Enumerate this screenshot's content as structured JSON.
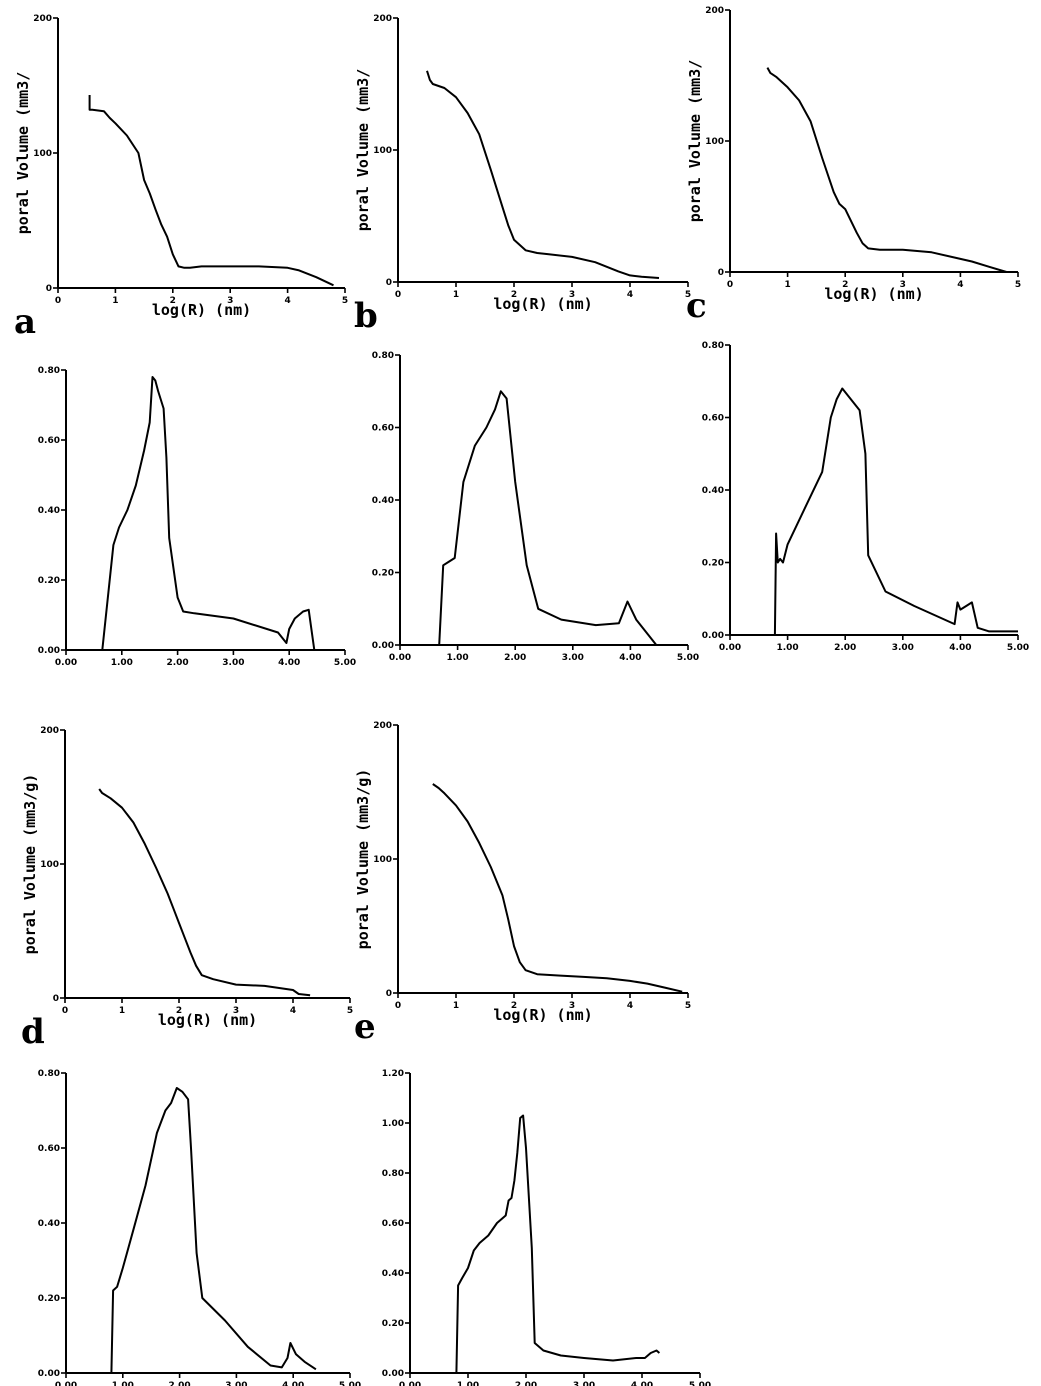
{
  "chart_data": [
    {
      "id": "a",
      "type": "line",
      "panel_label": "a",
      "xlabel": "log(R) (nm)",
      "ylabel": "poral Volume (mm3/",
      "xlim": [
        0,
        5
      ],
      "ylim": [
        0,
        200
      ],
      "x_ticks": [
        "0",
        "1",
        "2",
        "3",
        "4",
        "5"
      ],
      "y_ticks": [
        "0",
        "100",
        "200"
      ],
      "series": [
        {
          "x": [
            0.55,
            0.55,
            0.6,
            0.8,
            0.9,
            1.0,
            1.2,
            1.4,
            1.5,
            1.6,
            1.7,
            1.8,
            1.9,
            2.0,
            2.1,
            2.2,
            2.3,
            2.5,
            3.0,
            3.5,
            4.0,
            4.2,
            4.5,
            4.8
          ],
          "y": [
            143,
            132,
            132,
            131,
            126,
            122,
            113,
            100,
            80,
            70,
            58,
            47,
            38,
            25,
            16,
            15,
            15,
            16,
            16,
            16,
            15,
            13,
            8,
            2
          ]
        }
      ]
    },
    {
      "id": "b",
      "type": "line",
      "panel_label": "b",
      "xlabel": "log(R) (nm)",
      "ylabel": "poral Volume (mm3/",
      "xlim": [
        0,
        5
      ],
      "ylim": [
        0,
        200
      ],
      "x_ticks": [
        "0",
        "1",
        "2",
        "3",
        "4",
        "5"
      ],
      "y_ticks": [
        "0",
        "100",
        "200"
      ],
      "series": [
        {
          "x": [
            0.5,
            0.55,
            0.6,
            0.8,
            1.0,
            1.2,
            1.4,
            1.6,
            1.8,
            1.9,
            2.0,
            2.1,
            2.2,
            2.4,
            2.6,
            3.0,
            3.4,
            3.8,
            4.0,
            4.2,
            4.5
          ],
          "y": [
            160,
            153,
            150,
            147,
            140,
            128,
            112,
            85,
            57,
            43,
            32,
            28,
            24,
            22,
            21,
            19,
            15,
            8,
            5,
            4,
            3
          ]
        }
      ]
    },
    {
      "id": "c",
      "type": "line",
      "panel_label": "c",
      "xlabel": "log(R) (nm)",
      "ylabel": "poral Volume (mm3/",
      "xlim": [
        0,
        5
      ],
      "ylim": [
        0,
        200
      ],
      "x_ticks": [
        "0",
        "1",
        "2",
        "3",
        "4",
        "5"
      ],
      "y_ticks": [
        "0",
        "100",
        "200"
      ],
      "series": [
        {
          "x": [
            0.65,
            0.7,
            0.8,
            1.0,
            1.2,
            1.4,
            1.6,
            1.8,
            1.9,
            2.0,
            2.2,
            2.3,
            2.4,
            2.6,
            3.0,
            3.5,
            4.0,
            4.2,
            4.5,
            4.8
          ],
          "y": [
            156,
            152,
            149,
            141,
            131,
            115,
            87,
            61,
            52,
            48,
            30,
            22,
            18,
            17,
            17,
            15,
            10,
            8,
            4,
            0
          ]
        }
      ]
    },
    {
      "id": "a-distribution",
      "type": "line",
      "xlim": [
        0,
        5
      ],
      "ylim": [
        0,
        0.8
      ],
      "x_ticks": [
        "0.00",
        "1.00",
        "2.00",
        "3.00",
        "4.00",
        "5.00"
      ],
      "y_ticks": [
        "0.00",
        "0.20",
        "0.40",
        "0.60",
        "0.80"
      ],
      "series": [
        {
          "x": [
            0.65,
            0.85,
            0.95,
            1.1,
            1.25,
            1.4,
            1.5,
            1.55,
            1.6,
            1.65,
            1.75,
            1.8,
            1.85,
            2.0,
            2.1,
            2.3,
            3.0,
            3.8,
            3.95,
            4.0,
            4.1,
            4.25,
            4.35,
            4.45
          ],
          "y": [
            0,
            0.3,
            0.35,
            0.4,
            0.47,
            0.57,
            0.65,
            0.78,
            0.77,
            0.74,
            0.69,
            0.55,
            0.32,
            0.15,
            0.11,
            0.105,
            0.09,
            0.05,
            0.02,
            0.06,
            0.09,
            0.11,
            0.115,
            0
          ]
        }
      ]
    },
    {
      "id": "b-distribution",
      "type": "line",
      "xlim": [
        0,
        5
      ],
      "ylim": [
        0,
        0.8
      ],
      "x_ticks": [
        "0.00",
        "1.00",
        "2.00",
        "3.00",
        "4.00",
        "5.00"
      ],
      "y_ticks": [
        "0.00",
        "0.20",
        "0.40",
        "0.60",
        "0.80"
      ],
      "series": [
        {
          "x": [
            0.68,
            0.75,
            0.85,
            0.95,
            1.1,
            1.3,
            1.5,
            1.65,
            1.75,
            1.85,
            2.0,
            2.2,
            2.4,
            2.8,
            3.4,
            3.8,
            3.95,
            4.1,
            4.3,
            4.45
          ],
          "y": [
            0,
            0.22,
            0.23,
            0.24,
            0.45,
            0.55,
            0.6,
            0.65,
            0.7,
            0.68,
            0.45,
            0.22,
            0.1,
            0.07,
            0.055,
            0.06,
            0.12,
            0.07,
            0.03,
            0
          ]
        }
      ]
    },
    {
      "id": "c-distribution",
      "type": "line",
      "xlim": [
        0,
        5
      ],
      "ylim": [
        0,
        0.8
      ],
      "x_ticks": [
        "0.00",
        "1.00",
        "2.00",
        "3.00",
        "4.00",
        "5.00"
      ],
      "y_ticks": [
        "0.00",
        "0.20",
        "0.40",
        "0.60",
        "0.80"
      ],
      "series": [
        {
          "x": [
            0.78,
            0.8,
            0.83,
            0.87,
            0.92,
            1.0,
            1.3,
            1.6,
            1.75,
            1.85,
            1.95,
            2.25,
            2.35,
            2.4,
            2.7,
            3.2,
            3.9,
            3.95,
            4.0,
            4.1,
            4.2,
            4.3,
            4.5,
            5.0
          ],
          "y": [
            0,
            0.28,
            0.2,
            0.21,
            0.2,
            0.25,
            0.35,
            0.45,
            0.6,
            0.65,
            0.68,
            0.62,
            0.5,
            0.22,
            0.12,
            0.08,
            0.03,
            0.09,
            0.07,
            0.08,
            0.09,
            0.02,
            0.01,
            0.01
          ]
        }
      ]
    },
    {
      "id": "d",
      "type": "line",
      "panel_label": "d",
      "xlabel": "log(R) (nm)",
      "ylabel": "poral Volume (mm3/g)",
      "xlim": [
        0,
        5
      ],
      "ylim": [
        0,
        200
      ],
      "x_ticks": [
        "0",
        "1",
        "2",
        "3",
        "4",
        "5"
      ],
      "y_ticks": [
        "0",
        "100",
        "200"
      ],
      "series": [
        {
          "x": [
            0.6,
            0.65,
            0.8,
            1.0,
            1.2,
            1.4,
            1.6,
            1.8,
            1.9,
            2.0,
            2.1,
            2.2,
            2.3,
            2.4,
            2.6,
            3.0,
            3.5,
            4.0,
            4.1,
            4.3
          ],
          "y": [
            156,
            153,
            149,
            142,
            131,
            115,
            97,
            78,
            67,
            56,
            45,
            34,
            24,
            17,
            14,
            10,
            9,
            6,
            3,
            2
          ]
        }
      ]
    },
    {
      "id": "e",
      "type": "line",
      "panel_label": "e",
      "xlabel": "log(R) (nm)",
      "ylabel": "poral Volume (mm3/g)",
      "xlim": [
        0,
        5
      ],
      "ylim": [
        0,
        200
      ],
      "x_ticks": [
        "0",
        "1",
        "2",
        "3",
        "4",
        "5"
      ],
      "y_ticks": [
        "0",
        "100",
        "200"
      ],
      "series": [
        {
          "x": [
            0.6,
            0.7,
            0.8,
            1.0,
            1.2,
            1.4,
            1.6,
            1.8,
            1.9,
            2.0,
            2.1,
            2.2,
            2.4,
            2.8,
            3.2,
            3.6,
            4.0,
            4.3,
            4.6,
            4.9
          ],
          "y": [
            156,
            153,
            149,
            140,
            128,
            112,
            94,
            73,
            55,
            35,
            23,
            17,
            14,
            13,
            12,
            11,
            9,
            7,
            4,
            1
          ]
        }
      ]
    },
    {
      "id": "d-distribution",
      "type": "line",
      "xlim": [
        0,
        5
      ],
      "ylim": [
        0,
        0.8
      ],
      "x_ticks": [
        "0.00",
        "1.00",
        "2.00",
        "3.00",
        "4.00",
        "5.00"
      ],
      "y_ticks": [
        "0.00",
        "0.20",
        "0.40",
        "0.60",
        "0.80"
      ],
      "series": [
        {
          "x": [
            0.8,
            0.83,
            0.9,
            1.0,
            1.2,
            1.4,
            1.6,
            1.75,
            1.85,
            1.95,
            2.05,
            2.15,
            2.2,
            2.3,
            2.4,
            2.8,
            3.2,
            3.6,
            3.8,
            3.9,
            3.95,
            4.05,
            4.2,
            4.4
          ],
          "y": [
            0,
            0.22,
            0.23,
            0.28,
            0.39,
            0.5,
            0.64,
            0.7,
            0.72,
            0.76,
            0.75,
            0.73,
            0.6,
            0.32,
            0.2,
            0.14,
            0.07,
            0.02,
            0.015,
            0.04,
            0.08,
            0.05,
            0.03,
            0.01
          ]
        }
      ]
    },
    {
      "id": "e-distribution",
      "type": "line",
      "xlim": [
        0,
        5
      ],
      "ylim": [
        0,
        1.2
      ],
      "x_ticks": [
        "0.00",
        "1.00",
        "2.00",
        "3.00",
        "4.00",
        "5.00"
      ],
      "y_ticks": [
        "0.00",
        "0.20",
        "0.40",
        "0.60",
        "0.80",
        "1.00",
        "1.20"
      ],
      "series": [
        {
          "x": [
            0.8,
            0.83,
            0.9,
            1.0,
            1.1,
            1.2,
            1.35,
            1.5,
            1.65,
            1.7,
            1.75,
            1.8,
            1.85,
            1.9,
            1.95,
            2.0,
            2.1,
            2.15,
            2.3,
            2.6,
            3.0,
            3.5,
            3.9,
            4.05,
            4.15,
            4.25,
            4.3
          ],
          "y": [
            0,
            0.35,
            0.38,
            0.42,
            0.49,
            0.52,
            0.55,
            0.6,
            0.63,
            0.69,
            0.7,
            0.77,
            0.88,
            1.02,
            1.03,
            0.9,
            0.5,
            0.12,
            0.09,
            0.07,
            0.06,
            0.05,
            0.06,
            0.06,
            0.08,
            0.09,
            0.08
          ]
        }
      ]
    }
  ]
}
